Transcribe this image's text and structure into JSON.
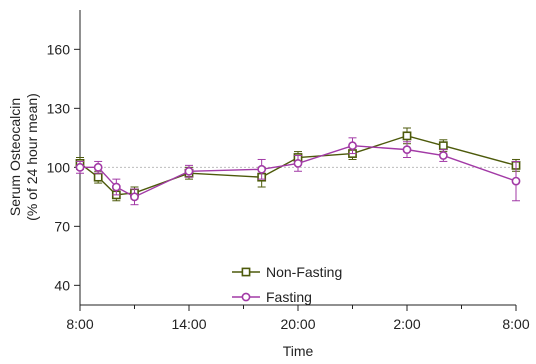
{
  "chart_data": {
    "type": "line",
    "xlabel": "Time",
    "ylabel_lines": [
      "Serum Osteocalcin",
      "(% of 24 hour mean)"
    ],
    "ylim": [
      30,
      180
    ],
    "yticks": [
      40,
      70,
      100,
      130,
      160
    ],
    "xlim": [
      0,
      24
    ],
    "xticks": [
      0,
      6,
      12,
      18,
      24
    ],
    "xtick_labels": [
      "8:00",
      "14:00",
      "20:00",
      "2:00",
      "8:00"
    ],
    "xtick_minor": [
      3,
      9,
      15,
      21
    ],
    "reference_line": 100,
    "series": [
      {
        "name": "Non-Fasting",
        "color": "#4d5a0b",
        "marker": "square",
        "x": [
          0,
          1,
          2,
          3,
          6,
          10,
          12,
          15,
          18,
          20,
          24
        ],
        "y": [
          102,
          95,
          86,
          87,
          97,
          95,
          105,
          107,
          116,
          111,
          101
        ],
        "err": [
          3,
          3,
          3,
          3,
          3,
          5,
          3,
          3,
          4,
          3,
          3
        ]
      },
      {
        "name": "Fasting",
        "color": "#a23aa6",
        "marker": "circle",
        "x": [
          0,
          1,
          2,
          3,
          6,
          10,
          12,
          15,
          18,
          20,
          24
        ],
        "y": [
          100,
          100,
          90,
          85,
          98,
          99,
          102,
          111,
          109,
          106,
          93
        ],
        "err": [
          3,
          3,
          4,
          4,
          3,
          5,
          4,
          4,
          4,
          3,
          10
        ]
      }
    ]
  }
}
